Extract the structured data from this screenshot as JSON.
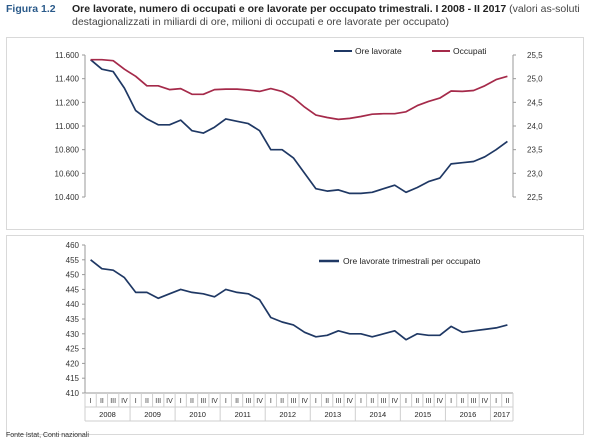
{
  "header": {
    "figure_number": "Figura 1.2",
    "title": "Ore lavorate, numero di occupati e ore lavorate per occupato trimestrali.  I 2008 - II 2017",
    "subtitle": "(valori as-soluti destagionalizzati in miliardi di ore, milioni di occupati e ore lavorate per occupato)"
  },
  "source": "Fonte Istat, Conti nazionali",
  "colors": {
    "ore": "#1f3864",
    "occupati": "#a52a4a",
    "grid": "#e6e6e6",
    "axis": "#9a9a9a"
  },
  "chart_data": [
    {
      "type": "line",
      "title": "",
      "x": [
        "I 2008",
        "II 2008",
        "III 2008",
        "IV 2008",
        "I 2009",
        "II 2009",
        "III 2009",
        "IV 2009",
        "I 2010",
        "II 2010",
        "III 2010",
        "IV 2010",
        "I 2011",
        "II 2011",
        "III 2011",
        "IV 2011",
        "I 2012",
        "II 2012",
        "III 2012",
        "IV 2012",
        "I 2013",
        "II 2013",
        "III 2013",
        "IV 2013",
        "I 2014",
        "II 2014",
        "III 2014",
        "IV 2014",
        "I 2015",
        "II 2015",
        "III 2015",
        "IV 2015",
        "I 2016",
        "II 2016",
        "III 2016",
        "IV 2016",
        "I 2017",
        "II 2017"
      ],
      "y_left": {
        "ylim": [
          10400,
          11600
        ],
        "ticks": [
          "10.400",
          "10.600",
          "10.800",
          "11.000",
          "11.200",
          "11.400",
          "11.600"
        ]
      },
      "y_right": {
        "ylim": [
          22.5,
          25.5
        ],
        "ticks": [
          "22,5",
          "23,0",
          "23,5",
          "24,0",
          "24,5",
          "25,0",
          "25,5"
        ]
      },
      "legend_position": "top-right",
      "series": [
        {
          "name": "Ore lavorate",
          "axis": "left",
          "values": [
            11560,
            11480,
            11460,
            11320,
            11130,
            11060,
            11010,
            11010,
            11050,
            10960,
            10940,
            10990,
            11060,
            11040,
            11020,
            10960,
            10800,
            10800,
            10730,
            10600,
            10470,
            10450,
            10460,
            10430,
            10430,
            10440,
            10470,
            10500,
            10440,
            10480,
            10530,
            10560,
            10680,
            10690,
            10700,
            10740,
            10800,
            10870
          ]
        },
        {
          "name": "Occupati",
          "axis": "right",
          "values": [
            25.4,
            25.4,
            25.38,
            25.2,
            25.05,
            24.85,
            24.85,
            24.77,
            24.79,
            24.67,
            24.67,
            24.77,
            24.78,
            24.78,
            24.76,
            24.73,
            24.79,
            24.73,
            24.6,
            24.4,
            24.23,
            24.18,
            24.14,
            24.16,
            24.2,
            24.25,
            24.26,
            24.26,
            24.3,
            24.43,
            24.52,
            24.59,
            24.74,
            24.73,
            24.75,
            24.85,
            24.98,
            25.05
          ]
        }
      ]
    },
    {
      "type": "line",
      "title": "",
      "x": [
        "I 2008",
        "II 2008",
        "III 2008",
        "IV 2008",
        "I 2009",
        "II 2009",
        "III 2009",
        "IV 2009",
        "I 2010",
        "II 2010",
        "III 2010",
        "IV 2010",
        "I 2011",
        "II 2011",
        "III 2011",
        "IV 2011",
        "I 2012",
        "II 2012",
        "III 2012",
        "IV 2012",
        "I 2013",
        "II 2013",
        "III 2013",
        "IV 2013",
        "I 2014",
        "II 2014",
        "III 2014",
        "IV 2014",
        "I 2015",
        "II 2015",
        "III 2015",
        "IV 2015",
        "I 2016",
        "II 2016",
        "III 2016",
        "IV 2016",
        "I 2017",
        "II 2017"
      ],
      "ylim": [
        410,
        460
      ],
      "yticks": [
        "460",
        "455",
        "450",
        "445",
        "440",
        "435",
        "430",
        "425",
        "420",
        "415",
        "410"
      ],
      "legend_position": "top-right",
      "series": [
        {
          "name": "Ore lavorate trimestrali per occupato",
          "values": [
            455,
            452,
            451.5,
            449,
            444,
            444,
            442,
            443.5,
            445,
            444,
            443.5,
            442.5,
            445,
            444,
            443.5,
            441.5,
            435.5,
            434,
            433,
            430.5,
            429,
            429.5,
            431,
            430,
            430,
            429,
            430,
            431,
            428,
            430,
            429.5,
            429.5,
            432.5,
            430.5,
            431,
            431.5,
            432,
            433
          ]
        }
      ]
    }
  ],
  "x_axis": {
    "quarter_labels": [
      "I",
      "II",
      "III",
      "IV"
    ],
    "years": [
      "2008",
      "2009",
      "2010",
      "2011",
      "2012",
      "2013",
      "2014",
      "2015",
      "2016",
      "2017"
    ]
  }
}
